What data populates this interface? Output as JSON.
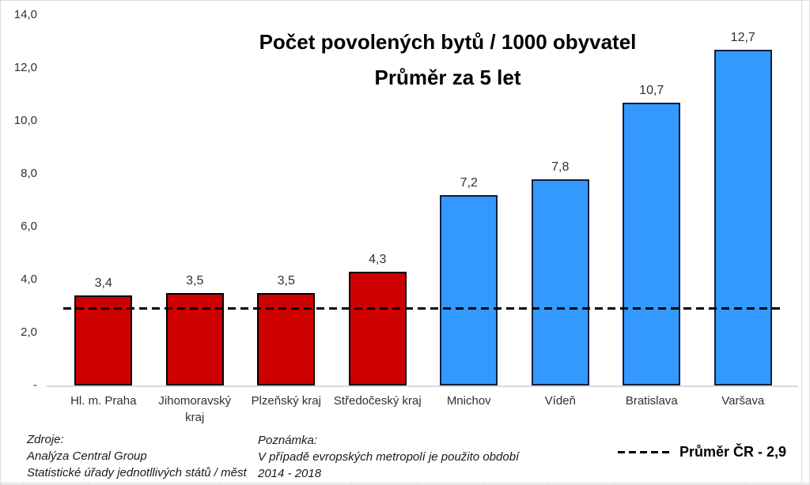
{
  "page": {
    "background": "#ffffff",
    "frame_color": "#d9d9d9"
  },
  "chart_data": {
    "type": "bar",
    "title": "Počet povolených bytů / 1000 obyvatel",
    "subtitle": "Průměr za 5 let",
    "categories": [
      "Hl. m. Praha",
      "Jihomoravský\nkraj",
      "Plzeňský kraj",
      "Středočeský kraj",
      "Mnichov",
      "Vídeň",
      "Bratislava",
      "Varšava"
    ],
    "values": [
      3.4,
      3.5,
      3.5,
      4.3,
      7.2,
      7.8,
      10.7,
      12.7
    ],
    "value_labels": [
      "3,4",
      "3,5",
      "3,5",
      "4,3",
      "7,2",
      "7,8",
      "10,7",
      "12,7"
    ],
    "bar_colors": [
      "#cc0000",
      "#cc0000",
      "#cc0000",
      "#cc0000",
      "#3399ff",
      "#3399ff",
      "#3399ff",
      "#3399ff"
    ],
    "bar_border_colors": [
      "#000000",
      "#000000",
      "#000000",
      "#000000",
      "#0f1f3d",
      "#0f1f3d",
      "#0f1f3d",
      "#0f1f3d"
    ],
    "ylim": [
      0,
      14
    ],
    "y_ticks": [
      {
        "label": "14,0",
        "value": 14
      },
      {
        "label": "12,0",
        "value": 12
      },
      {
        "label": "10,0",
        "value": 10
      },
      {
        "label": "8,0",
        "value": 8
      },
      {
        "label": "6,0",
        "value": 6
      },
      {
        "label": "4,0",
        "value": 4
      },
      {
        "label": "2,0",
        "value": 2
      },
      {
        "label": "-",
        "value": 0
      }
    ],
    "average_line": {
      "value": 2.9,
      "color": "#000000",
      "style": "dashed"
    },
    "grid": false,
    "axis_line_color": "#d9d9d9",
    "legend_position": "bottom-right"
  },
  "legend": {
    "label": "Průměr ČR - 2,9"
  },
  "footer": {
    "sources": {
      "heading": "Zdroje:",
      "lines": [
        "Analýza Central Group",
        "Statistické úřady jednotllivých států / měst"
      ]
    },
    "note": {
      "heading": "Poznámka:",
      "lines": [
        "V případě evropských metropolí je použito období",
        "2014 - 2018"
      ]
    }
  }
}
